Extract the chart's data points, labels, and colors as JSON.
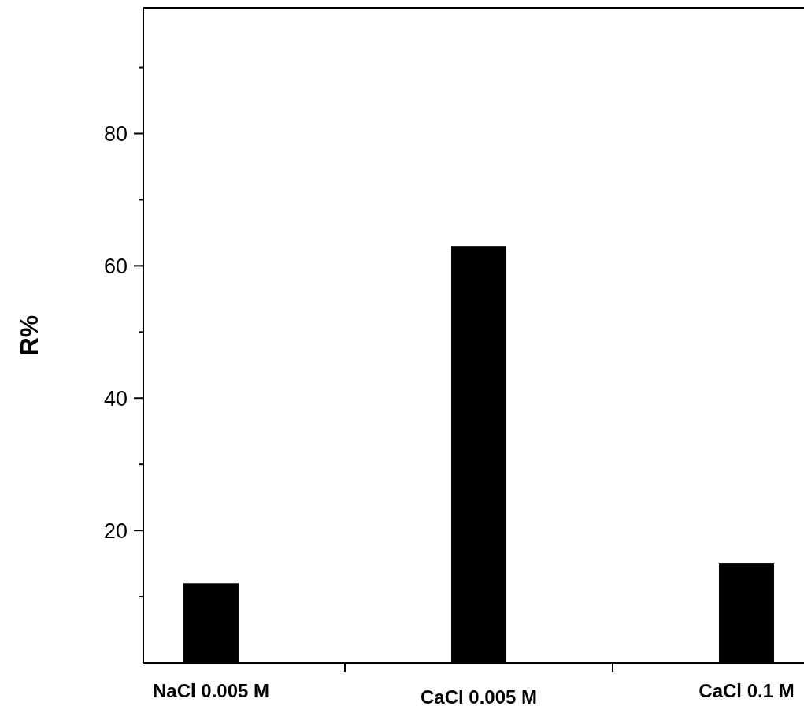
{
  "chart_data": {
    "type": "bar",
    "ylabel": "R%",
    "categories": [
      "NaCl 0.005 M",
      "CaCl 0.005 M",
      "CaCl 0.1 M"
    ],
    "values": [
      12,
      63,
      15
    ],
    "color": "#000000",
    "ylim": [
      0,
      99
    ],
    "yticks": [
      {
        "value": 10,
        "label": null
      },
      20,
      {
        "value": 30,
        "label": null
      },
      40,
      {
        "value": 50,
        "label": null
      },
      60,
      {
        "value": 70,
        "label": null
      },
      80,
      {
        "value": 90,
        "label": null
      }
    ],
    "grid": false
  }
}
